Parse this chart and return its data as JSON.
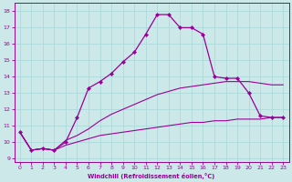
{
  "xlabel": "Windchill (Refroidissement éolien,°C)",
  "background_color": "#cce8e8",
  "line_color": "#990099",
  "xlim": [
    -0.5,
    23.5
  ],
  "ylim": [
    8.8,
    18.5
  ],
  "xticks": [
    0,
    1,
    2,
    3,
    4,
    5,
    6,
    7,
    8,
    9,
    10,
    11,
    12,
    13,
    14,
    15,
    16,
    17,
    18,
    19,
    20,
    21,
    22,
    23
  ],
  "yticks": [
    9,
    10,
    11,
    12,
    13,
    14,
    15,
    16,
    17,
    18
  ],
  "grid_color": "#a8d8d8",
  "series1_x": [
    0,
    1,
    2,
    3,
    4,
    5,
    6,
    7,
    8,
    9,
    10,
    11,
    12,
    13,
    14,
    15,
    16,
    17,
    18,
    19,
    20,
    21,
    22,
    23
  ],
  "series1_y": [
    10.6,
    9.5,
    9.6,
    9.5,
    10.0,
    11.5,
    13.3,
    13.7,
    14.2,
    14.9,
    15.5,
    16.6,
    17.8,
    17.8,
    17.0,
    17.0,
    16.6,
    14.0,
    13.9,
    13.9,
    13.0,
    11.6,
    11.5,
    11.5
  ],
  "series2_y": [
    10.6,
    9.5,
    9.6,
    9.5,
    10.1,
    10.4,
    10.8,
    11.3,
    11.7,
    12.0,
    12.3,
    12.6,
    12.9,
    13.1,
    13.3,
    13.4,
    13.5,
    13.6,
    13.7,
    13.7,
    13.7,
    13.6,
    13.5,
    13.5
  ],
  "series3_y": [
    10.6,
    9.5,
    9.6,
    9.5,
    9.8,
    10.0,
    10.2,
    10.4,
    10.5,
    10.6,
    10.7,
    10.8,
    10.9,
    11.0,
    11.1,
    11.2,
    11.2,
    11.3,
    11.3,
    11.4,
    11.4,
    11.4,
    11.5,
    11.5
  ]
}
